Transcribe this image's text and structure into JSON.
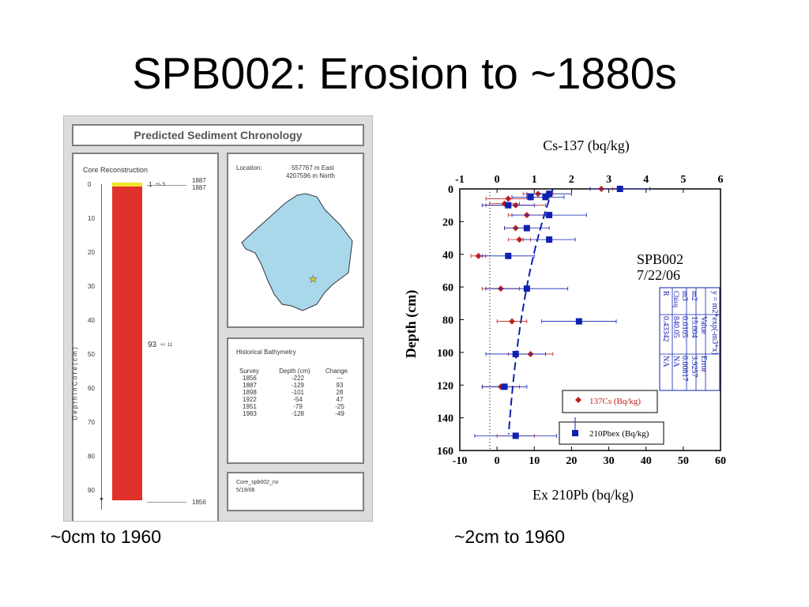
{
  "slide": {
    "title": "SPB002: Erosion to ~1880s",
    "caption_left": "~0cm to 1960",
    "caption_right": "~2cm to 1960"
  },
  "core_figure": {
    "title": "Predicted Sediment Chronology",
    "core_panel": {
      "title": "Core Reconstruction",
      "depth_ticks": [
        "0",
        "10",
        "20",
        "30",
        "40",
        "50",
        "60",
        "70",
        "80",
        "90"
      ],
      "axis_label": "D e p t h   I n   C o r e   ( c m )",
      "top_dates": [
        "1887",
        "1887"
      ],
      "bottom_date": "1856",
      "top_layer_label": "1",
      "top_layer_err": "+/- 5",
      "main_layer_label": "93",
      "main_layer_err": "+/- 11",
      "colors": {
        "top_layer": "#f2e32b",
        "main_layer": "#e0312b"
      }
    },
    "location_panel": {
      "label": "Location:",
      "east": "557767 m East",
      "north": "4207596 m North",
      "map_color": "#a8d8ea"
    },
    "bathymetry_panel": {
      "title": "Historical Bathymetry",
      "headers": [
        "Survey",
        "Depth (cm)",
        "Change"
      ],
      "rows": [
        [
          "1856",
          "-222",
          "---"
        ],
        [
          "1887",
          "-129",
          "93"
        ],
        [
          "1898",
          "-101",
          "28"
        ],
        [
          "1922",
          "-54",
          "47"
        ],
        [
          "1951",
          "-79",
          "-25"
        ],
        [
          "1983",
          "-128",
          "-49"
        ]
      ]
    },
    "footer_panel": {
      "name": "Core_spb002_nx",
      "date": "5/19/08"
    }
  },
  "chart_data": {
    "type": "scatter",
    "title_top": "Cs-137 (bq/kg)",
    "xlabel": "Ex 210Pb (bq/kg)",
    "ylabel": "Depth (cm)",
    "xlim_bottom": [
      -10,
      60
    ],
    "xlim_top": [
      -1,
      6
    ],
    "ylim": [
      0,
      160
    ],
    "x_ticks_bottom": [
      "-10",
      "0",
      "10",
      "20",
      "30",
      "40",
      "50",
      "60"
    ],
    "x_ticks_top": [
      "-1",
      "0",
      "1",
      "2",
      "3",
      "4",
      "5",
      "6"
    ],
    "y_ticks": [
      "0",
      "20",
      "40",
      "60",
      "80",
      "100",
      "120",
      "140",
      "160"
    ],
    "annotation": [
      "SPB002",
      "7/22/06"
    ],
    "fit_equation": "y = m2*exp(-m3*x)",
    "fit_table": {
      "headers": [
        "",
        "Value",
        "Error"
      ],
      "rows": [
        [
          "m2",
          "15.004",
          "3.9257"
        ],
        [
          "m3",
          "0.0105",
          "0.00817"
        ],
        [
          "Chisq",
          "840.05",
          "NA"
        ],
        [
          "R",
          "0.43342",
          "NA"
        ]
      ]
    },
    "series": [
      {
        "name": "137Cs (Bq/kg)",
        "axis": "top",
        "color": "#c0211f",
        "points": [
          {
            "x": 2.8,
            "y": 0,
            "err": 0.3
          },
          {
            "x": 1.1,
            "y": 3,
            "err": 0.4
          },
          {
            "x": 0.3,
            "y": 6,
            "err": 0.6
          },
          {
            "x": 0.5,
            "y": 10,
            "err": 0.8
          },
          {
            "x": 0.2,
            "y": 9,
            "err": 0.4
          },
          {
            "x": 0.8,
            "y": 16,
            "err": 0.5
          },
          {
            "x": 0.5,
            "y": 24,
            "err": 0.3
          },
          {
            "x": 0.6,
            "y": 31,
            "err": 0.3
          },
          {
            "x": -0.5,
            "y": 41,
            "err": 0.2
          },
          {
            "x": 0.1,
            "y": 61,
            "err": 0.5
          },
          {
            "x": 0.4,
            "y": 81,
            "err": 0.4
          },
          {
            "x": 0.9,
            "y": 101,
            "err": 0.6
          },
          {
            "x": 0.1,
            "y": 121,
            "err": 0.5
          },
          {
            "x": 0.5,
            "y": 151,
            "err": 0.5
          }
        ]
      },
      {
        "name": "210Pbex (Bq/kg)",
        "axis": "bottom",
        "color": "#1020b0",
        "points": [
          {
            "x": 33,
            "y": 0,
            "err": 8
          },
          {
            "x": 14,
            "y": 3,
            "err": 6
          },
          {
            "x": 13,
            "y": 5,
            "err": 5
          },
          {
            "x": 9,
            "y": 5,
            "err": 5
          },
          {
            "x": 3,
            "y": 10,
            "err": 7
          },
          {
            "x": 14,
            "y": 16,
            "err": 10
          },
          {
            "x": 8,
            "y": 24,
            "err": 6
          },
          {
            "x": 14,
            "y": 31,
            "err": 7
          },
          {
            "x": 3,
            "y": 41,
            "err": 7
          },
          {
            "x": 8,
            "y": 61,
            "err": 11
          },
          {
            "x": 22,
            "y": 81,
            "err": 10
          },
          {
            "x": 5,
            "y": 101,
            "err": 8
          },
          {
            "x": 2,
            "y": 121,
            "err": 6
          },
          {
            "x": 5,
            "y": 151,
            "err": 11
          }
        ]
      }
    ],
    "fit_curve": {
      "m2": 15.004,
      "m3": 0.0105,
      "color": "#1020b0"
    },
    "legend": [
      "137Cs (Bq/kg)",
      "210Pbex (Bq/kg)"
    ],
    "grid": false
  }
}
